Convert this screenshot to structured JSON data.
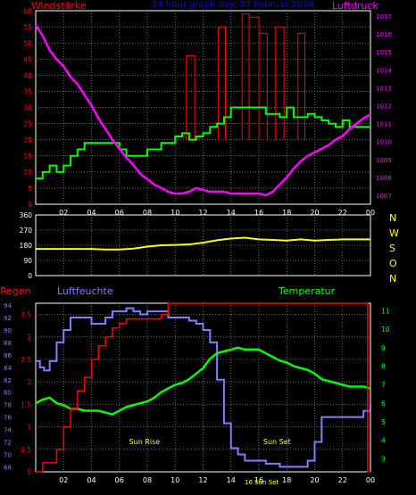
{
  "colors": {
    "background": "#000000",
    "panel_border": "#ffffff",
    "grid": "#7f7f7f",
    "wind": "#00ff00",
    "pressure": "#ff00ff",
    "gust": "#ff0000",
    "direction": "#ffff00",
    "direction_axis": "#ffff00",
    "rain": "#ff0000",
    "humidity": "#7f7fff",
    "temperature": "#00ff00",
    "annotation": "#ffff00",
    "title": "#0000ff"
  },
  "header": {
    "left_title": "Windstärke",
    "center_title": "24 hour graph day: 07 Februar 2019",
    "right_title": "Luftdruck"
  },
  "x_ticks": [
    "02",
    "04",
    "06",
    "08",
    "10",
    "12",
    "14",
    "16",
    "18",
    "20",
    "22",
    "00"
  ],
  "chart_data": [
    {
      "id": "wind_pressure",
      "type": "line",
      "title": "24 hour graph day: 07 Februar 2019",
      "xlabel": "",
      "x_range_hours": [
        0,
        24
      ],
      "y_left": {
        "label": "Windstärke",
        "ticks": [
          0,
          5,
          10,
          15,
          20,
          25,
          30,
          35,
          40,
          45,
          50,
          55,
          60
        ],
        "range": [
          0,
          60
        ]
      },
      "y_right": {
        "label": "Luftdruck",
        "ticks": [
          1007,
          1008,
          1009,
          1010,
          1011,
          1012,
          1013,
          1014,
          1015,
          1016,
          1017
        ],
        "range": [
          1006.5,
          1017.3
        ]
      },
      "grid": true,
      "series": [
        {
          "name": "Wind",
          "axis": "left",
          "style": "step",
          "x": [
            0,
            0.5,
            1,
            1.5,
            2,
            2.5,
            3,
            3.5,
            4,
            4.5,
            5,
            5.5,
            6,
            6.5,
            7,
            7.5,
            8,
            8.5,
            9,
            9.5,
            10,
            10.5,
            11,
            11.5,
            12,
            12.5,
            13,
            13.5,
            14,
            14.5,
            15,
            15.5,
            16,
            16.5,
            17,
            17.5,
            18,
            18.5,
            19,
            19.5,
            20,
            20.5,
            21,
            21.5,
            22,
            22.5,
            23,
            23.5,
            24
          ],
          "values": [
            8,
            10,
            12,
            10,
            12,
            15,
            17,
            19,
            19,
            19,
            19,
            19,
            17,
            15,
            15,
            15,
            17,
            17,
            19,
            19,
            21,
            22,
            20,
            21,
            22,
            24,
            25,
            27,
            30,
            30,
            30,
            30,
            30,
            28,
            28,
            27,
            30,
            27,
            27,
            28,
            27,
            26,
            25,
            24,
            26,
            24,
            24,
            24,
            24
          ]
        },
        {
          "name": "Gust",
          "axis": "left",
          "style": "spikes",
          "bars": [
            {
              "x0": 10.8,
              "x1": 11.4,
              "value": 46
            },
            {
              "x0": 13.1,
              "x1": 13.6,
              "value": 55
            },
            {
              "x0": 14.8,
              "x1": 15.3,
              "value": 59
            },
            {
              "x0": 15.3,
              "x1": 16.0,
              "value": 58
            },
            {
              "x0": 16.0,
              "x1": 16.6,
              "value": 53
            },
            {
              "x0": 17.2,
              "x1": 17.8,
              "value": 55
            },
            {
              "x0": 18.8,
              "x1": 19.3,
              "value": 53
            }
          ]
        },
        {
          "name": "Luftdruck",
          "axis": "right",
          "style": "line",
          "x": [
            0,
            0.5,
            1,
            1.5,
            2,
            2.5,
            3,
            3.5,
            4,
            4.5,
            5,
            5.5,
            6,
            6.5,
            7,
            7.5,
            8,
            8.5,
            9,
            9.5,
            10,
            10.5,
            11,
            11.5,
            12,
            12.5,
            13,
            13.5,
            14,
            14.5,
            15,
            15.5,
            16,
            16.5,
            17,
            17.5,
            18,
            18.5,
            19,
            19.5,
            20,
            20.5,
            21,
            21.5,
            22,
            22.5,
            23,
            23.5,
            24
          ],
          "values": [
            1016.5,
            1015.9,
            1015.1,
            1014.6,
            1014.2,
            1013.6,
            1013.2,
            1012.6,
            1012.0,
            1011.3,
            1010.7,
            1010.1,
            1009.6,
            1009.1,
            1008.7,
            1008.2,
            1007.9,
            1007.6,
            1007.4,
            1007.2,
            1007.1,
            1007.1,
            1007.2,
            1007.4,
            1007.3,
            1007.2,
            1007.2,
            1007.2,
            1007.1,
            1007.1,
            1007.1,
            1007.1,
            1007.1,
            1007.0,
            1007.2,
            1007.6,
            1008.0,
            1008.5,
            1008.9,
            1009.2,
            1009.4,
            1009.6,
            1009.8,
            1010.1,
            1010.3,
            1010.7,
            1011.0,
            1011.3,
            1011.5
          ]
        }
      ]
    },
    {
      "id": "direction",
      "type": "line",
      "title": "",
      "y_left": {
        "label": "",
        "ticks": [
          0,
          90,
          180,
          270,
          360
        ],
        "range": [
          0,
          360
        ]
      },
      "y_right_letters": [
        "N",
        "W",
        "S",
        "O",
        "N"
      ],
      "grid": true,
      "series": [
        {
          "name": "Windrichtung",
          "axis": "left",
          "x": [
            0,
            1,
            2,
            3,
            4,
            5,
            6,
            7,
            8,
            9,
            10,
            11,
            12,
            13,
            14,
            15,
            16,
            17,
            18,
            19,
            20,
            21,
            22,
            23,
            24
          ],
          "values": [
            158,
            158,
            158,
            158,
            158,
            155,
            155,
            160,
            172,
            180,
            182,
            185,
            195,
            210,
            220,
            225,
            215,
            212,
            208,
            215,
            208,
            212,
            215,
            215,
            215
          ]
        }
      ]
    },
    {
      "id": "rain_humidity_temperature",
      "type": "line",
      "title": "",
      "labels": {
        "rain": "Regen",
        "humidity": "Luftfeuchte",
        "temperature": "Temperatur"
      },
      "y_left_outer": {
        "label": "Regen",
        "ticks": [
          0,
          0.5,
          1,
          1.5,
          2,
          2.5,
          3,
          3.5
        ],
        "tick_labels": [
          "0",
          "0.5",
          "1",
          "1.5",
          "2",
          "2.5",
          "3",
          "3.5"
        ],
        "range": [
          0,
          3.75
        ]
      },
      "y_left_inner": {
        "label": "Luftfeuchte",
        "ticks": [
          68,
          70,
          72,
          74,
          76,
          78,
          80,
          82,
          84,
          86,
          88,
          90,
          92,
          94
        ],
        "range": [
          67.2,
          94.3
        ]
      },
      "y_right": {
        "label": "Temperatur",
        "ticks": [
          3,
          4,
          5,
          6,
          7,
          8,
          9,
          10,
          11
        ],
        "range": [
          2.3,
          11.4
        ]
      },
      "annotations": [
        {
          "text": "Sun Rise",
          "x_hour": 7.8
        },
        {
          "text": "Sun Set",
          "x_hour": 17.3
        },
        {
          "text": "16 Sun Set",
          "x_hour": 16.2
        }
      ],
      "grid": true,
      "series": [
        {
          "name": "Regen",
          "axis": "left_outer",
          "style": "step",
          "x": [
            0,
            0.5,
            1,
            1.5,
            2,
            2.5,
            3,
            3.5,
            4,
            4.5,
            5,
            5.5,
            6,
            6.5,
            7,
            7.5,
            8,
            8.5,
            9,
            9.5,
            10,
            11,
            12,
            13,
            14,
            15,
            16,
            17,
            18,
            19,
            20,
            21,
            22,
            23,
            23.75,
            23.8,
            24
          ],
          "values": [
            0,
            0.2,
            0.2,
            0.5,
            1.0,
            1.4,
            1.8,
            2.1,
            2.5,
            2.8,
            3.0,
            3.2,
            3.3,
            3.4,
            3.4,
            3.4,
            3.4,
            3.4,
            3.5,
            3.75,
            3.75,
            3.75,
            3.75,
            3.75,
            3.75,
            3.75,
            3.75,
            3.75,
            3.75,
            3.75,
            3.75,
            3.75,
            3.75,
            3.75,
            3.75,
            0,
            0
          ]
        },
        {
          "name": "Luftfeuchte",
          "axis": "left_inner",
          "style": "step",
          "x": [
            0,
            0.3,
            0.6,
            1,
            1.5,
            2,
            2.5,
            3,
            3.5,
            4,
            4.5,
            5,
            5.5,
            6,
            6.5,
            7,
            7.5,
            8,
            8.5,
            9,
            9.5,
            10,
            10.5,
            11,
            11.5,
            12,
            12.5,
            13,
            13.5,
            14,
            14.5,
            15,
            15.5,
            16,
            16.5,
            17,
            17.5,
            18,
            18.5,
            19,
            19.5,
            20,
            20.5,
            21,
            21.5,
            22,
            22.5,
            23,
            23.5,
            24
          ],
          "values": [
            85,
            84,
            83.5,
            85,
            88,
            90,
            92,
            92,
            92,
            91,
            91,
            92,
            93,
            93,
            93.5,
            93,
            92.5,
            93,
            93,
            93,
            92,
            92,
            92,
            91.5,
            91,
            90,
            88,
            82,
            75,
            71,
            70,
            69,
            69,
            69,
            68.5,
            68.5,
            68,
            68,
            68,
            68,
            69,
            72,
            76,
            76,
            76,
            76,
            76,
            76,
            77,
            78
          ]
        },
        {
          "name": "Temperatur",
          "axis": "right",
          "style": "line",
          "x": [
            0,
            0.5,
            1,
            1.5,
            2,
            2.5,
            3,
            3.5,
            4,
            4.5,
            5,
            5.5,
            6,
            6.5,
            7,
            7.5,
            8,
            8.5,
            9,
            9.5,
            10,
            10.5,
            11,
            11.5,
            12,
            12.5,
            13,
            13.5,
            14,
            14.5,
            15,
            15.5,
            16,
            16.5,
            17,
            17.5,
            18,
            18.5,
            19,
            19.5,
            20,
            20.5,
            21,
            21.5,
            22,
            22.5,
            23,
            23.5,
            24
          ],
          "values": [
            6.0,
            6.2,
            6.3,
            6.0,
            5.9,
            5.7,
            5.7,
            5.6,
            5.6,
            5.6,
            5.5,
            5.4,
            5.6,
            5.8,
            5.9,
            6.0,
            6.1,
            6.3,
            6.6,
            6.8,
            7.0,
            7.1,
            7.3,
            7.6,
            7.9,
            8.4,
            8.7,
            8.8,
            8.9,
            9.0,
            8.9,
            8.9,
            8.9,
            8.7,
            8.5,
            8.3,
            8.2,
            8.0,
            7.9,
            7.8,
            7.6,
            7.3,
            7.2,
            7.1,
            7.0,
            6.9,
            6.9,
            6.9,
            6.8
          ]
        }
      ]
    }
  ]
}
